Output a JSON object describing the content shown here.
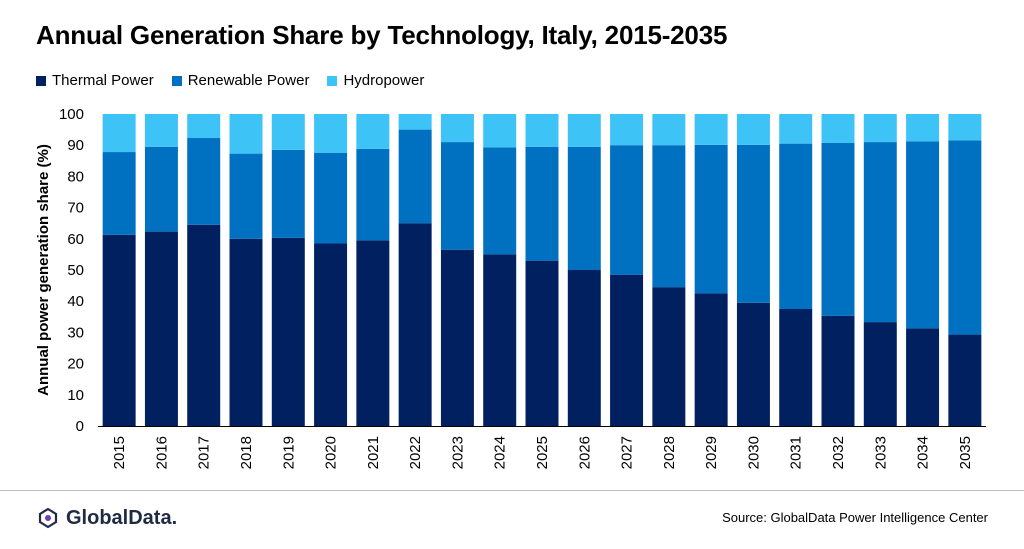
{
  "title": "Annual Generation Share by Technology, Italy, 2015-2035",
  "source": "Source: GlobalData Power Intelligence Center",
  "logo_text": "GlobalData.",
  "colors": {
    "thermal": "#002060",
    "renewable": "#0070c0",
    "hydro": "#3ec3f7"
  },
  "chart_data": {
    "type": "bar",
    "stacked": true,
    "title": "Annual Generation Share by Technology, Italy, 2015-2035",
    "ylabel": "Annual power generation share (%)",
    "xlabel": "",
    "ylim": [
      0,
      100
    ],
    "yticks": [
      0,
      10,
      20,
      30,
      40,
      50,
      60,
      70,
      80,
      90,
      100
    ],
    "legend_position": "top-left",
    "grid": false,
    "categories": [
      "2015",
      "2016",
      "2017",
      "2018",
      "2019",
      "2020",
      "2021",
      "2022",
      "2023",
      "2024",
      "2025",
      "2026",
      "2027",
      "2028",
      "2029",
      "2030",
      "2031",
      "2032",
      "2033",
      "2034",
      "2035"
    ],
    "series": [
      {
        "name": "Thermal Power",
        "values": [
          61.3,
          62.3,
          64.5,
          60.0,
          60.3,
          58.5,
          59.5,
          65.0,
          56.5,
          55.0,
          53.0,
          50.0,
          48.5,
          44.5,
          42.5,
          39.5,
          37.5,
          35.3,
          33.3,
          31.3,
          29.3
        ]
      },
      {
        "name": "Renewable Power",
        "values": [
          26.5,
          27.2,
          27.8,
          27.3,
          28.2,
          29.0,
          29.3,
          30.0,
          34.5,
          34.3,
          36.5,
          39.5,
          41.5,
          45.5,
          47.6,
          50.6,
          53.0,
          55.4,
          57.7,
          59.9,
          62.2
        ]
      },
      {
        "name": "Hydropower",
        "values": [
          12.2,
          10.5,
          7.7,
          12.7,
          11.5,
          12.5,
          11.2,
          5.0,
          9.0,
          10.7,
          10.5,
          10.5,
          10.0,
          10.0,
          9.9,
          9.9,
          9.5,
          9.3,
          9.0,
          8.8,
          8.5
        ]
      }
    ]
  }
}
